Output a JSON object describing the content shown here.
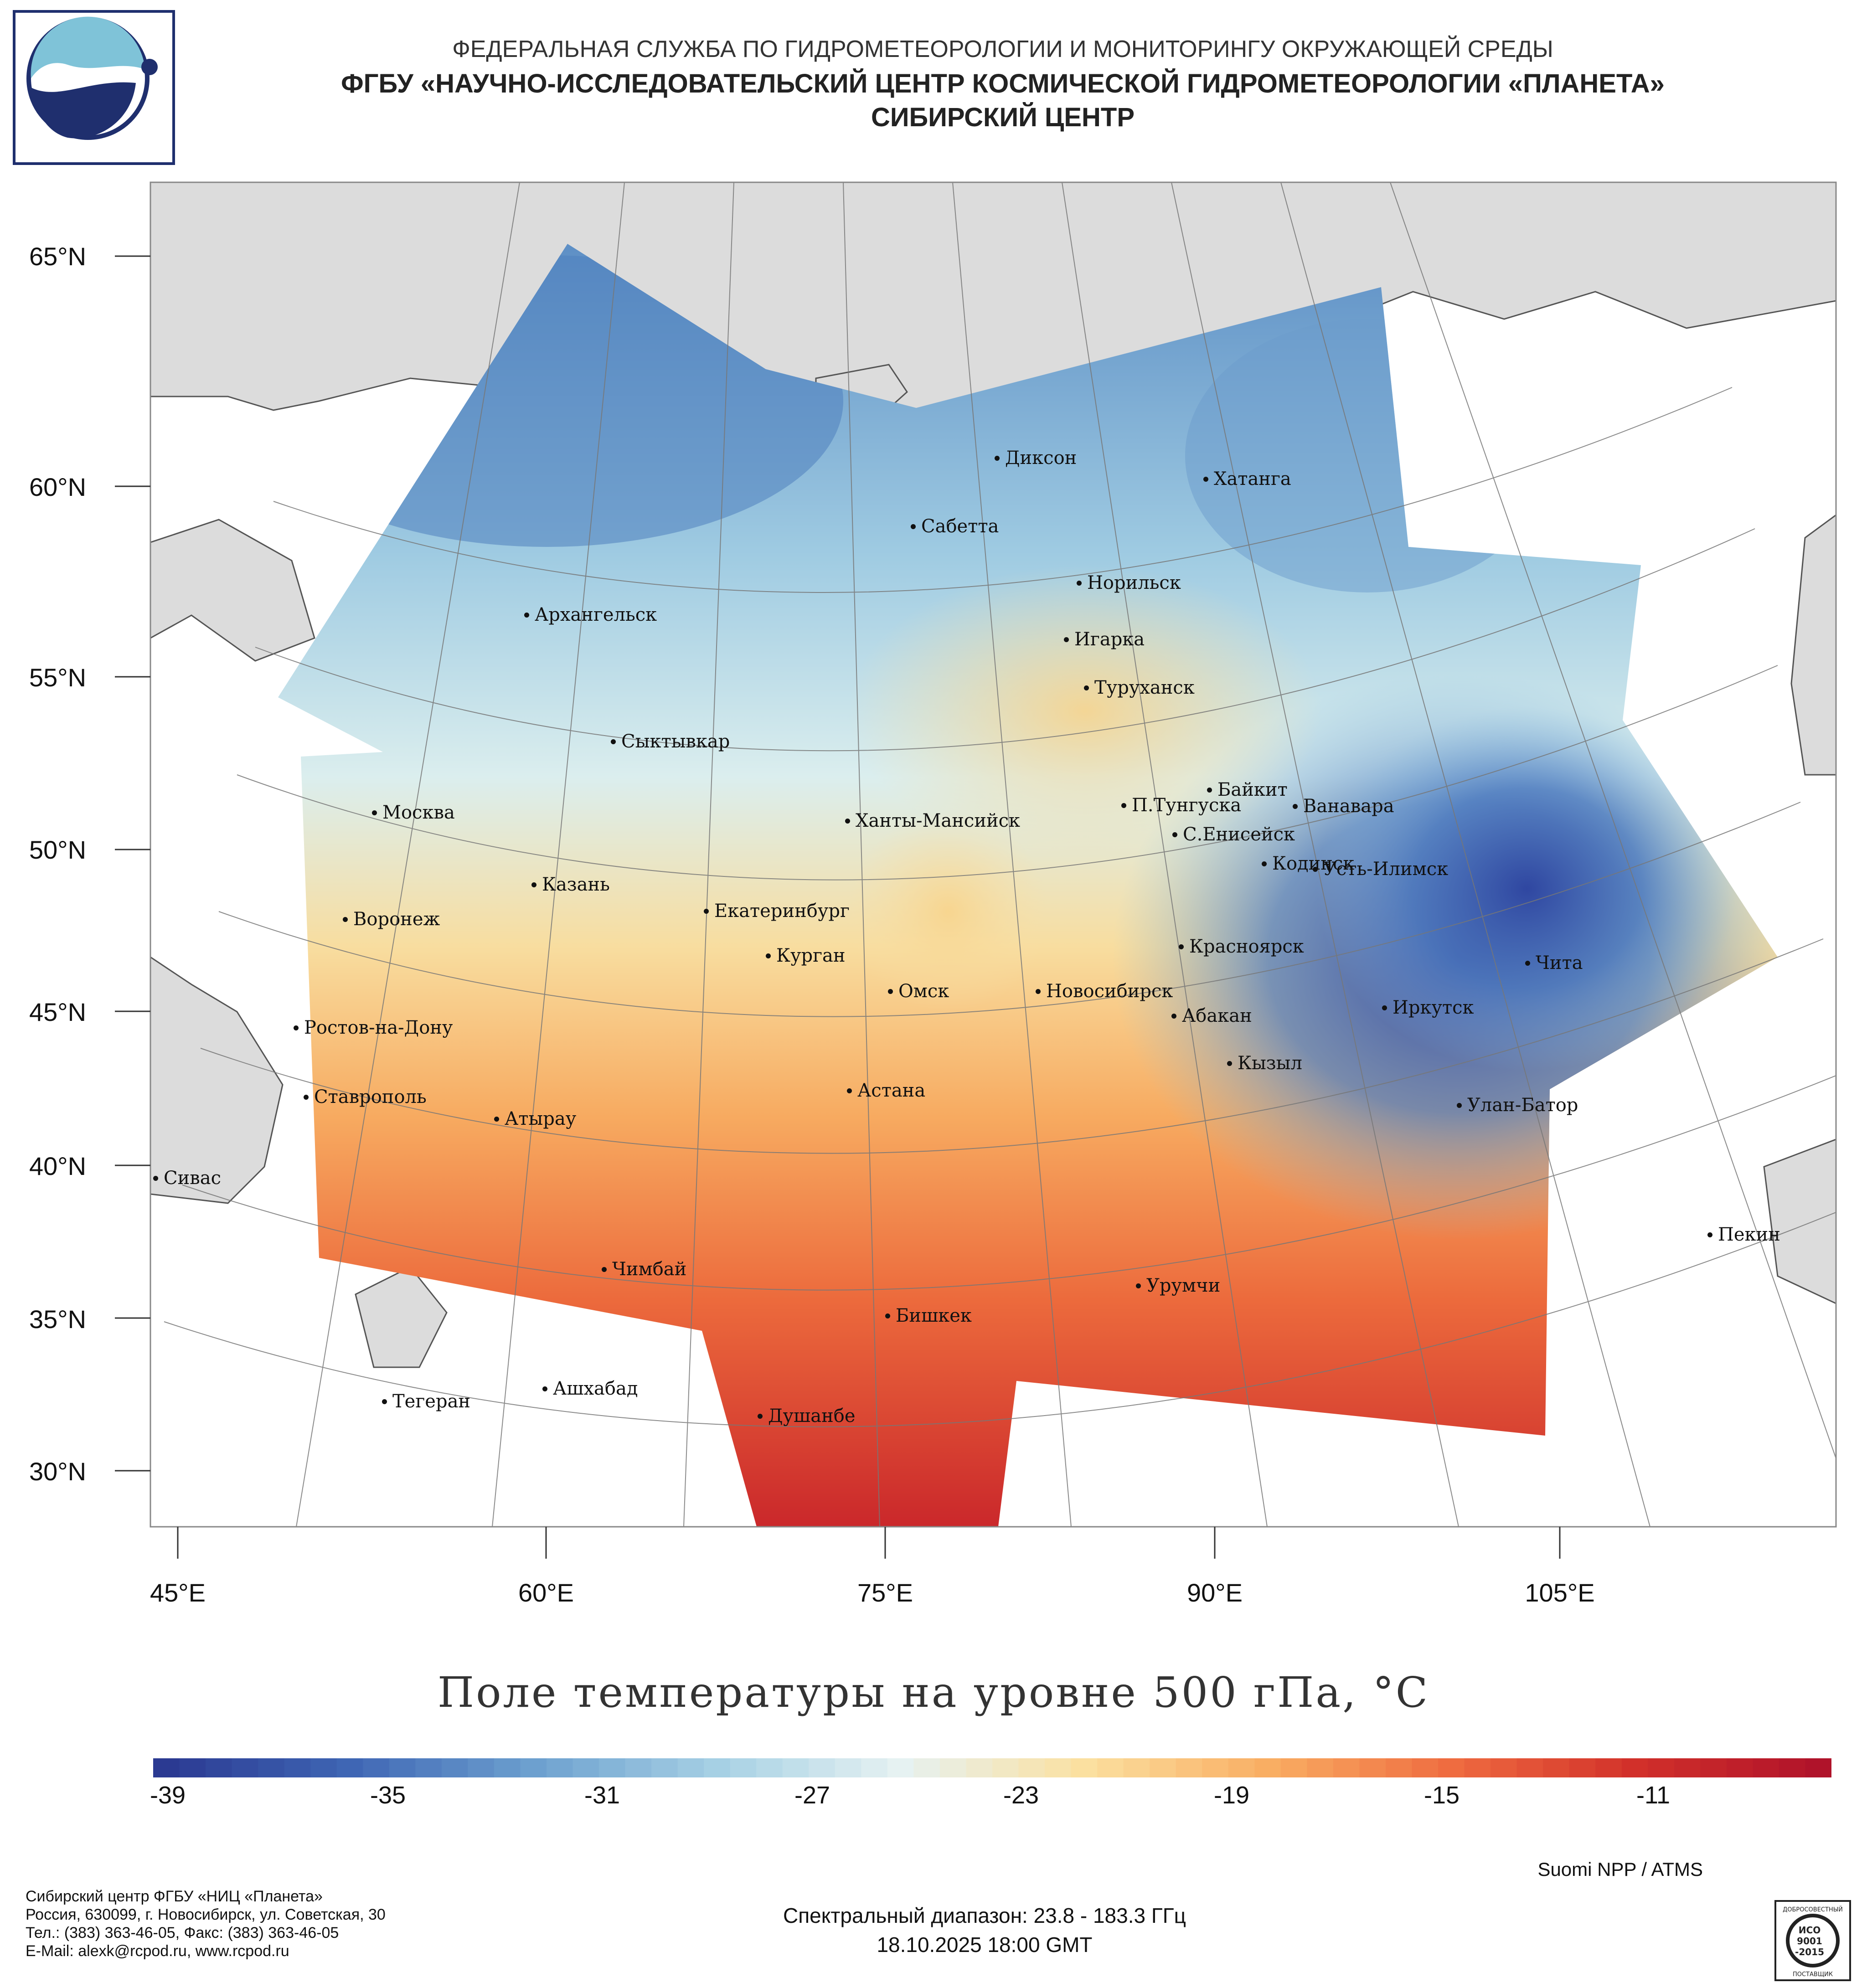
{
  "header": {
    "line1": "ФЕДЕРАЛЬНАЯ СЛУЖБА ПО ГИДРОМЕТЕОРОЛОГИИ И МОНИТОРИНГУ ОКРУЖАЮЩЕЙ СРЕДЫ",
    "line2": "ФГБУ «НАУЧНО-ИССЛЕДОВАТЕЛЬСКИЙ ЦЕНТР КОСМИЧЕСКОЙ ГИДРОМЕТЕОРОЛОГИИ «ПЛАНЕТА»",
    "line3": "СИБИРСКИЙ ЦЕНТР"
  },
  "latitudes": [
    "65°N",
    "60°N",
    "55°N",
    "50°N",
    "45°N",
    "40°N",
    "35°N",
    "30°N"
  ],
  "longitudes": [
    "45°E",
    "60°E",
    "75°E",
    "90°E",
    "105°E"
  ],
  "cities": [
    "Диксон",
    "Хатанга",
    "Сабетта",
    "Норильск",
    "Архангельск",
    "Игарка",
    "Туруханск",
    "Сыктывкар",
    "Байкит",
    "Москва",
    "П.Тунгуска",
    "Ванавара",
    "Ханты-Мансийск",
    "С.Енисейск",
    "Кодинск",
    "Усть-Илимск",
    "Казань",
    "Екатеринбург",
    "Воронеж",
    "Красноярск",
    "Курган",
    "Чита",
    "Омск",
    "Новосибирск",
    "Иркутск",
    "Абакан",
    "Ростов-на-Дону",
    "Кызыл",
    "Ставрополь",
    "Астана",
    "Улан-Батор",
    "Атырау",
    "Сивас",
    "Пекин",
    "Чимбай",
    "Урумчи",
    "Бишкек",
    "Ашхабад",
    "Тегеран",
    "Душанбе"
  ],
  "map_title": "Поле температуры на уровне 500 гПа, °C",
  "colorbar": {
    "unit": "°C",
    "min": -40,
    "max": -8,
    "tick_labels": [
      "-39",
      "-35",
      "-31",
      "-27",
      "-23",
      "-19",
      "-15",
      "-11"
    ],
    "colors": [
      "#2b3a92",
      "#3f66b4",
      "#6da0cf",
      "#a6d0e4",
      "#e6f2f2",
      "#fbe0a0",
      "#f9ae63",
      "#ef6c40",
      "#d2302a",
      "#b0132a"
    ]
  },
  "source": "Suomi NPP / ATMS",
  "footer": {
    "org": "Сибирский центр ФГБУ «НИЦ «Планета»",
    "address": "Россия, 630099, г. Новосибирск, ул. Советская, 30",
    "phone": "Тел.: (383) 363-46-05, Факс: (383) 363-46-05",
    "email": "E-Mail: alexk@rcpod.ru, www.rcpod.ru",
    "spectral": "Спектральный диапазон: 23.8 - 183.3 ГГц",
    "datetime": "18.10.2025 18:00 GMT"
  },
  "iso_badge": {
    "top": "ДОБРОСОВЕСТНЫЙ",
    "l1": "ИСО",
    "l2": "9001",
    "l3": "-2015",
    "bottom": "ПОСТАВЩИК"
  },
  "colors": {
    "land": "#dcdcdc",
    "ocean": "#ffffff",
    "grid": "#777777",
    "text": "#222222"
  }
}
